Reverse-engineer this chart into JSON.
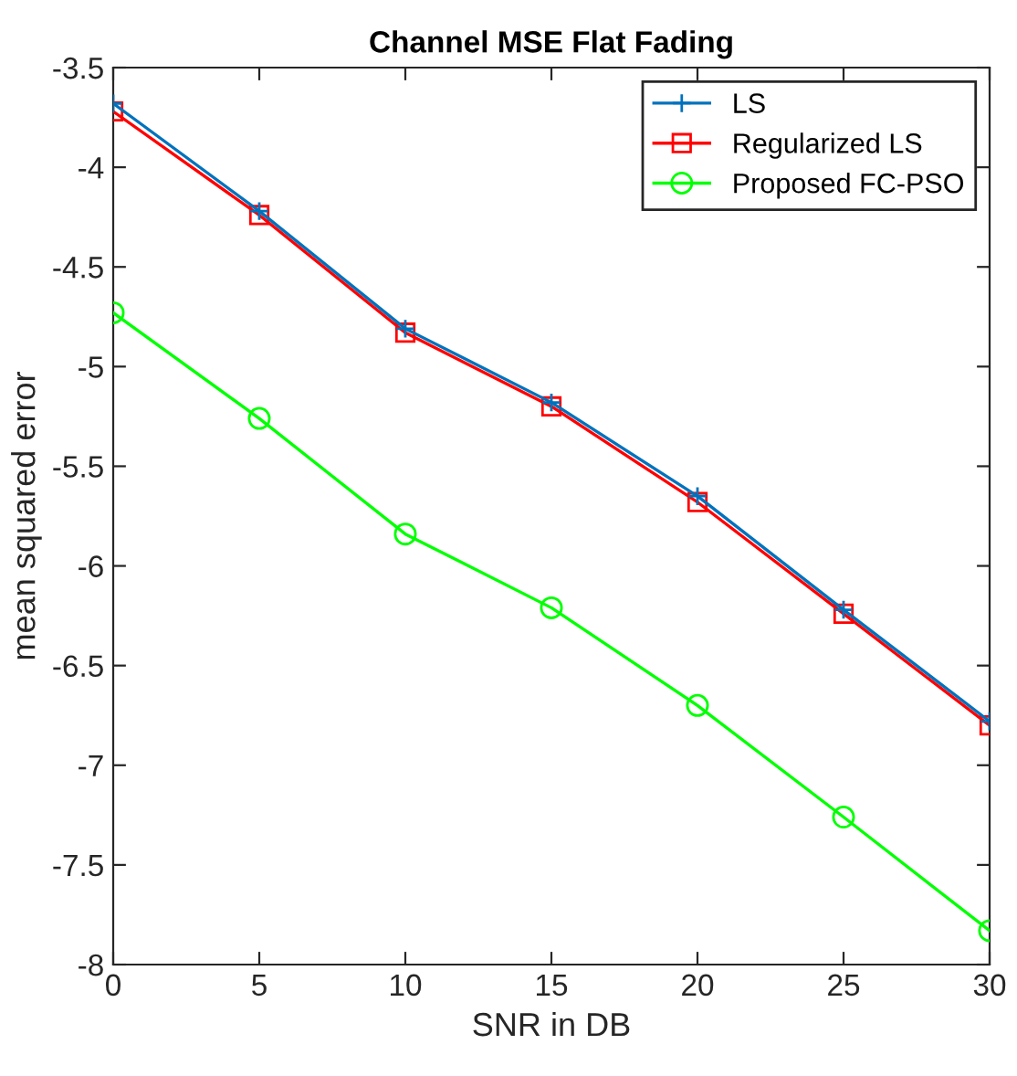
{
  "chart_data": {
    "type": "line",
    "title": "Channel MSE Flat Fading",
    "xlabel": "SNR in DB",
    "ylabel": "mean squared error",
    "x": [
      0,
      5,
      10,
      15,
      20,
      25,
      30
    ],
    "series": [
      {
        "name": "LS",
        "color": "#0072bd",
        "marker": "cross",
        "values": [
          -3.68,
          -4.22,
          -4.81,
          -5.18,
          -5.65,
          -6.22,
          -6.78
        ]
      },
      {
        "name": "Regularized LS",
        "color": "#ff0000",
        "marker": "square",
        "values": [
          -3.72,
          -4.24,
          -4.83,
          -5.2,
          -5.68,
          -6.24,
          -6.8
        ]
      },
      {
        "name": "Proposed FC-PSO",
        "color": "#00ff00",
        "marker": "circle",
        "values": [
          -4.73,
          -5.26,
          -5.84,
          -6.21,
          -6.7,
          -7.26,
          -7.83
        ]
      }
    ],
    "xlim": [
      0,
      30
    ],
    "xticks": [
      0,
      5,
      10,
      15,
      20,
      25,
      30
    ],
    "ylim": [
      -8,
      -3.5
    ],
    "yticks": [
      -8,
      -7.5,
      -7,
      -6.5,
      -6,
      -5.5,
      -5,
      -4.5,
      -4,
      -3.5
    ],
    "grid": false,
    "legend": "top right",
    "line_style": "solid"
  }
}
